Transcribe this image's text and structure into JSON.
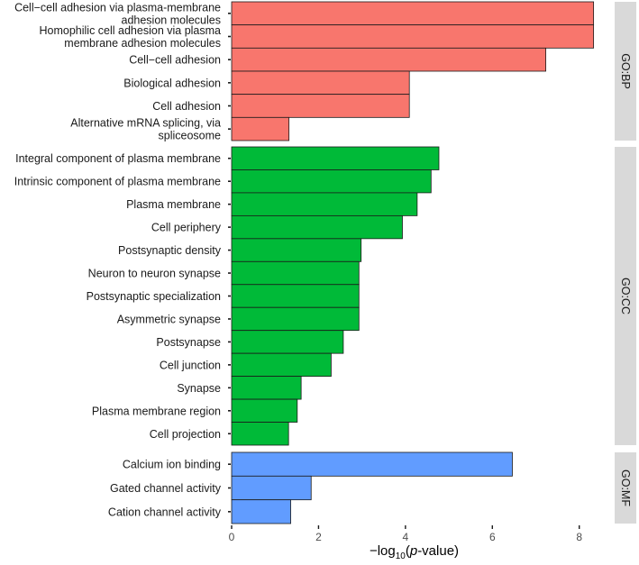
{
  "chart_data": {
    "type": "bar",
    "orientation": "horizontal",
    "xlabel": "-log10(p-value)",
    "xlabel_parts": {
      "prefix": "−log",
      "subscript": "10",
      "open": "(",
      "italic": "p",
      "suffix": "-value)"
    },
    "xlim": [
      0,
      8.4
    ],
    "xticks": [
      0,
      2,
      4,
      6,
      8
    ],
    "grid": false,
    "panels": [
      {
        "name": "GO:BP",
        "color": "#F8766D",
        "bars": [
          {
            "label": [
              "Cell−cell adhesion via plasma-membrane",
              "adhesion molecules"
            ],
            "value": 8.33
          },
          {
            "label": [
              "Homophilic cell adhesion via plasma",
              "membrane adhesion molecules"
            ],
            "value": 8.33
          },
          {
            "label": [
              "Cell−cell adhesion"
            ],
            "value": 7.23
          },
          {
            "label": [
              "Biological adhesion"
            ],
            "value": 4.09
          },
          {
            "label": [
              "Cell adhesion"
            ],
            "value": 4.09
          },
          {
            "label": [
              "Alternative mRNA splicing, via",
              "spliceosome"
            ],
            "value": 1.32
          }
        ]
      },
      {
        "name": "GO:CC",
        "color": "#00BA38",
        "bars": [
          {
            "label": [
              "Integral component of plasma membrane"
            ],
            "value": 4.77
          },
          {
            "label": [
              "Intrinsic component of plasma membrane"
            ],
            "value": 4.59
          },
          {
            "label": [
              "Plasma  membrane"
            ],
            "value": 4.27
          },
          {
            "label": [
              "Cell periphery"
            ],
            "value": 3.93
          },
          {
            "label": [
              "Postsynaptic density"
            ],
            "value": 2.98
          },
          {
            "label": [
              "Neuron to neuron synapse"
            ],
            "value": 2.93
          },
          {
            "label": [
              "Postsynaptic specialization"
            ],
            "value": 2.93
          },
          {
            "label": [
              "Asymmetric synapse"
            ],
            "value": 2.93
          },
          {
            "label": [
              "Postsynapse"
            ],
            "value": 2.57
          },
          {
            "label": [
              "Cell junction"
            ],
            "value": 2.29
          },
          {
            "label": [
              "Synapse"
            ],
            "value": 1.6
          },
          {
            "label": [
              "Plasma membrane region"
            ],
            "value": 1.51
          },
          {
            "label": [
              "Cell projection"
            ],
            "value": 1.31
          }
        ]
      },
      {
        "name": "GO:MF",
        "color": "#619CFF",
        "bars": [
          {
            "label": [
              "Calcium ion binding"
            ],
            "value": 6.46
          },
          {
            "label": [
              "Gated channel activity"
            ],
            "value": 1.83
          },
          {
            "label": [
              "Cation channel activity"
            ],
            "value": 1.36
          }
        ]
      }
    ]
  }
}
